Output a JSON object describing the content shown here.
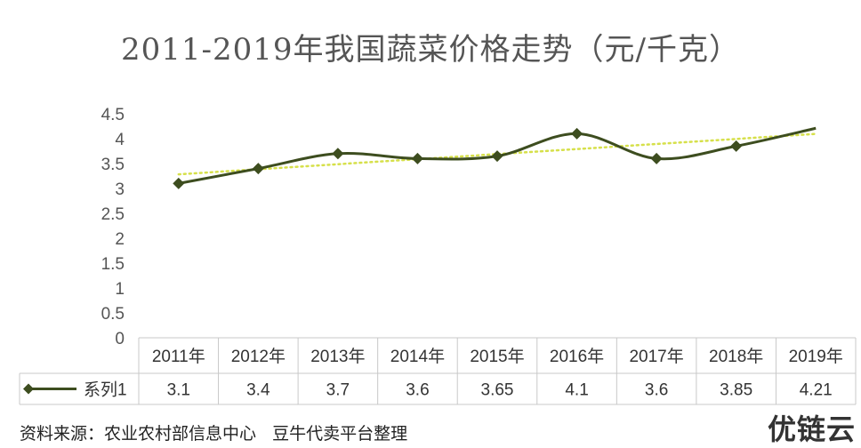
{
  "chart_data": {
    "type": "line",
    "title": "2011-2019年我国蔬菜价格走势（元/千克）",
    "categories": [
      "2011年",
      "2012年",
      "2013年",
      "2014年",
      "2015年",
      "2016年",
      "2017年",
      "2018年",
      "2019年"
    ],
    "series": [
      {
        "name": "系列1",
        "values": [
          3.1,
          3.4,
          3.7,
          3.6,
          3.65,
          4.1,
          3.6,
          3.85,
          4.21
        ]
      }
    ],
    "data_table_values": [
      "3.1",
      "3.4",
      "3.7",
      "3.6",
      "3.65",
      "4.1",
      "3.6",
      "3.85",
      "4.21"
    ],
    "y_ticks": [
      "0",
      "0.5",
      "1",
      "1.5",
      "2",
      "2.5",
      "3",
      "3.5",
      "4",
      "4.5"
    ],
    "ylim": [
      0,
      4.5
    ],
    "trendline": "linear",
    "grid": false,
    "legend": "data-table",
    "colors": {
      "series": "#3d4d1f",
      "trendline": "#d6e04a",
      "table_border": "#c8c8c8"
    }
  },
  "source_note": "资料来源：农业农村部信息中心   豆牛代卖平台整理",
  "watermark": "优链云"
}
